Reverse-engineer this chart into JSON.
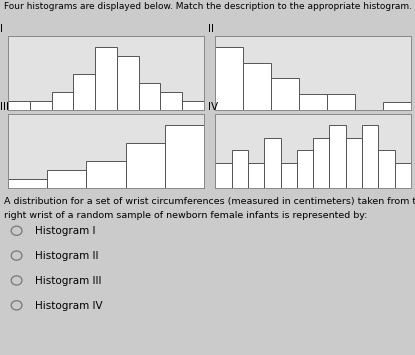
{
  "hist1": {
    "label": "I",
    "values": [
      1,
      1,
      2,
      4,
      7,
      6,
      3,
      2,
      1
    ],
    "bar_color": "white",
    "edge_color": "#555555"
  },
  "hist2": {
    "label": "II",
    "values": [
      8,
      6,
      4,
      2,
      2,
      0,
      1
    ],
    "bar_color": "white",
    "edge_color": "#555555"
  },
  "hist3": {
    "label": "III",
    "values": [
      1,
      2,
      3,
      5,
      7
    ],
    "bar_color": "white",
    "edge_color": "#555555"
  },
  "hist4": {
    "label": "IV",
    "values": [
      2,
      3,
      2,
      4,
      2,
      3,
      4,
      5,
      4,
      5,
      3,
      2
    ],
    "bar_color": "white",
    "edge_color": "#555555"
  },
  "title": "Four histograms are displayed below. Match the description to the appropriate histogram.",
  "question_text1": "A distribution for a set of wrist circumferences (measured in centimeters) taken from the",
  "question_text2": "right wrist of a random sample of newborn female infants is represented by:",
  "options": [
    "Histogram I",
    "Histogram II",
    "Histogram III",
    "Histogram IV"
  ],
  "bg_color": "#cbcbcb",
  "box_bg": "#e2e2e2",
  "title_fontsize": 6.5,
  "label_fontsize": 7.5,
  "option_fontsize": 7.5,
  "question_fontsize": 6.8
}
